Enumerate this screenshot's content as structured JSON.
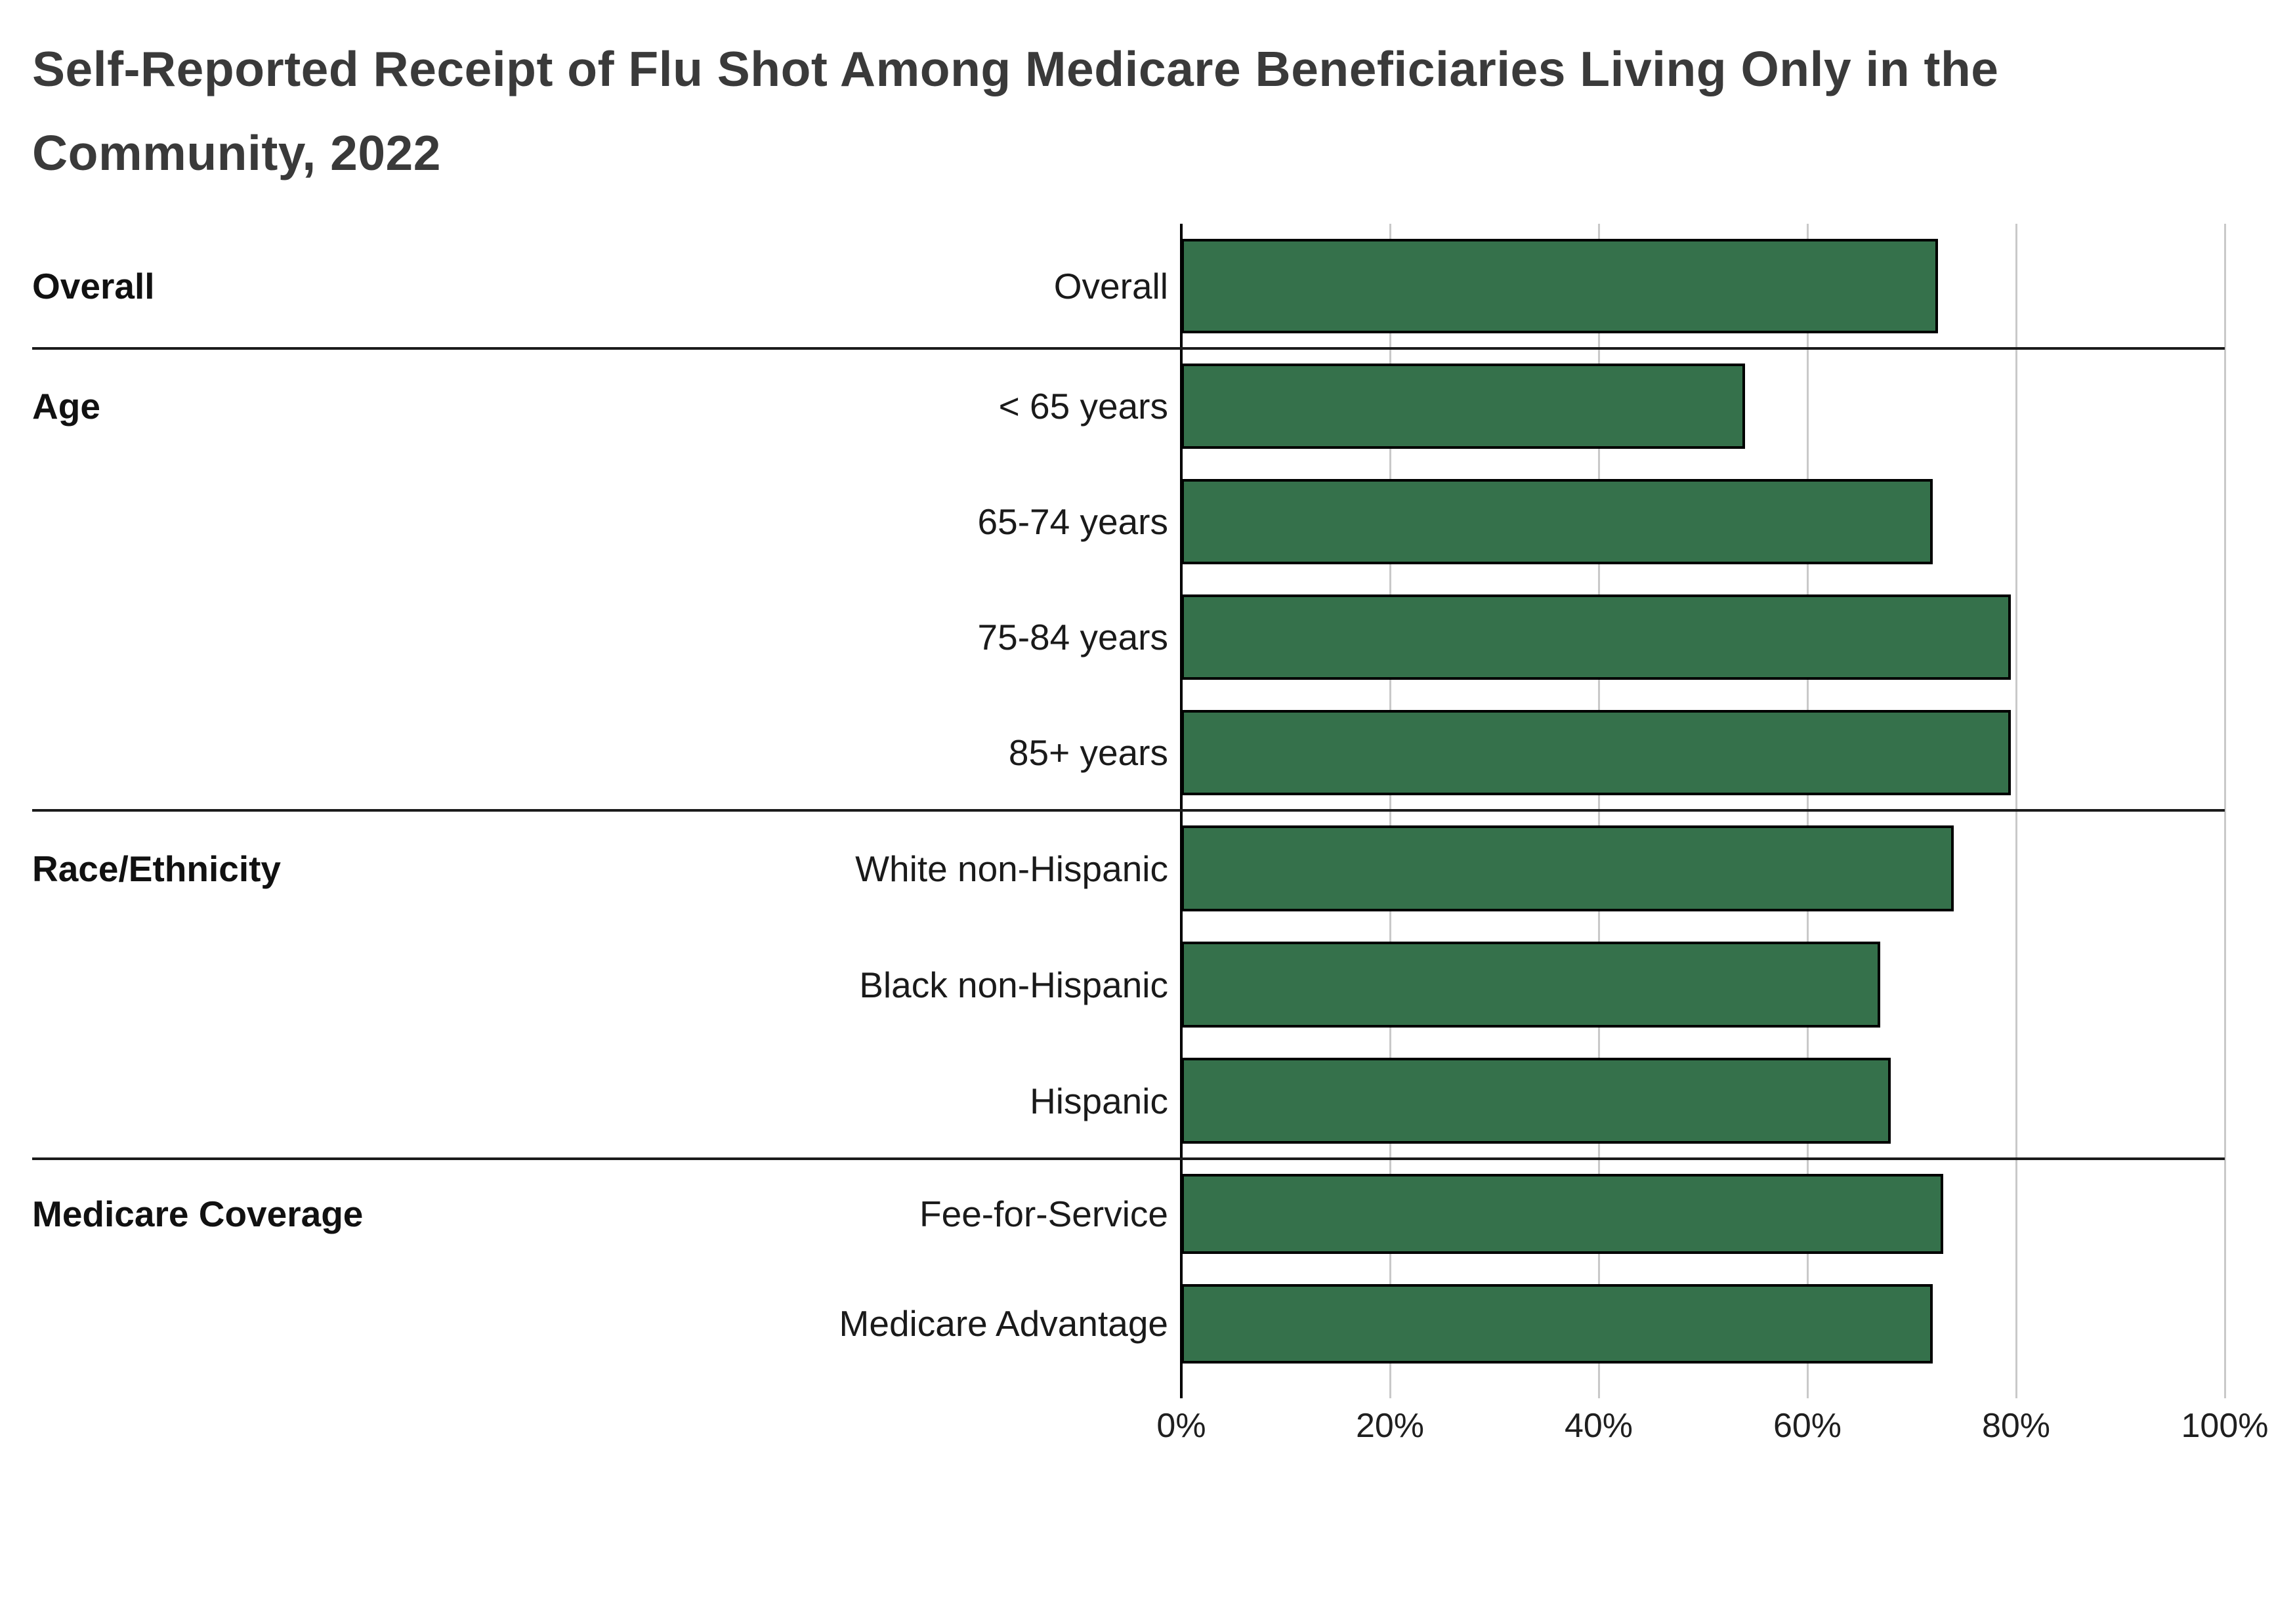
{
  "title": "Self-Reported Receipt of Flu Shot Among Medicare Beneficiaries Living Only in the Community, 2022",
  "chart_data": {
    "type": "bar",
    "orientation": "horizontal",
    "title": "Self-Reported Receipt of Flu Shot Among Medicare Beneficiaries Living Only in the Community, 2022",
    "unit": "%",
    "xlim": [
      0,
      100
    ],
    "x_ticks": [
      {
        "value": 0,
        "label": "0%"
      },
      {
        "value": 20,
        "label": "20%"
      },
      {
        "value": 40,
        "label": "40%"
      },
      {
        "value": 60,
        "label": "60%"
      },
      {
        "value": 80,
        "label": "80%"
      },
      {
        "value": 100,
        "label": "100%"
      }
    ],
    "grid": "vertical-on",
    "legend": "none",
    "bar_fill_color": "#35714b",
    "bar_outline_color": "#000000",
    "gridline_color": "#c9c9c9",
    "groups": [
      {
        "label": "Overall",
        "rows": [
          {
            "label": "Overall",
            "value": 72.5
          }
        ]
      },
      {
        "label": "Age",
        "rows": [
          {
            "label": "< 65 years",
            "value": 54
          },
          {
            "label": "65-74 years",
            "value": 72
          },
          {
            "label": "75-84 years",
            "value": 79.5
          },
          {
            "label": "85+ years",
            "value": 79.5
          }
        ]
      },
      {
        "label": "Race/Ethnicity",
        "rows": [
          {
            "label": "White non-Hispanic",
            "value": 74
          },
          {
            "label": "Black non-Hispanic",
            "value": 67
          },
          {
            "label": "Hispanic",
            "value": 68
          }
        ]
      },
      {
        "label": "Medicare Coverage",
        "rows": [
          {
            "label": "Fee-for-Service",
            "value": 73
          },
          {
            "label": "Medicare Advantage",
            "value": 72
          }
        ]
      }
    ]
  }
}
